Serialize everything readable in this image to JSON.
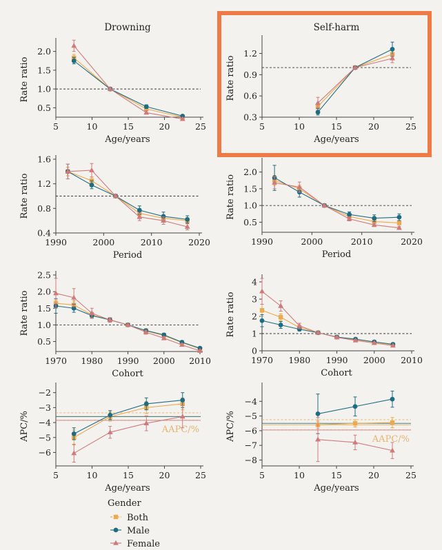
{
  "colors": {
    "both": "#eca94d",
    "male": "#1f6c82",
    "female": "#d07a7c",
    "highlight": "#ee7a45",
    "axis": "#444444",
    "refline": "#333333",
    "aapc_text": "#e7b36f"
  },
  "legend": {
    "title": "Gender",
    "items": [
      {
        "key": "both",
        "label": "Both",
        "marker": "square"
      },
      {
        "key": "male",
        "label": "Male",
        "marker": "circle"
      },
      {
        "key": "female",
        "label": "Female",
        "marker": "triangle"
      }
    ]
  },
  "chart_data": [
    {
      "id": "drowning-age",
      "type": "line",
      "title": "Drowning",
      "xlabel": "Age/years",
      "ylabel": "Rate ratio",
      "xlim": [
        5,
        25
      ],
      "ylim": [
        0.25,
        2.25
      ],
      "xticks": [
        5,
        10,
        15,
        20,
        25
      ],
      "yticks": [
        0.5,
        1.0,
        1.5,
        2.0
      ],
      "xtick_labels": [
        "5",
        "10",
        "15",
        "20",
        "25"
      ],
      "ytick_labels": [
        "0.5",
        "1.0",
        "1.5",
        "2.0"
      ],
      "reference_line": 1.0,
      "x": [
        7.5,
        12.5,
        17.5,
        22.5
      ],
      "series": [
        {
          "name": "Both",
          "values": [
            1.83,
            1.0,
            0.47,
            0.25
          ],
          "lower": [
            1.75,
            0.98,
            0.42,
            0.22
          ],
          "upper": [
            1.92,
            1.02,
            0.52,
            0.28
          ]
        },
        {
          "name": "Male",
          "values": [
            1.75,
            1.0,
            0.53,
            0.28
          ],
          "lower": [
            1.67,
            0.98,
            0.48,
            0.25
          ],
          "upper": [
            1.84,
            1.02,
            0.58,
            0.31
          ]
        },
        {
          "name": "Female",
          "values": [
            2.15,
            1.0,
            0.37,
            0.2
          ],
          "lower": [
            2.0,
            0.98,
            0.33,
            0.17
          ],
          "upper": [
            2.3,
            1.02,
            0.42,
            0.23
          ]
        }
      ]
    },
    {
      "id": "selfharm-age",
      "type": "line",
      "title": "Self-harm",
      "highlighted": true,
      "xlabel": "Age/years",
      "ylabel": "Rate ratio",
      "xlim": [
        5,
        25
      ],
      "ylim": [
        0.3,
        1.4
      ],
      "xticks": [
        5,
        10,
        15,
        20,
        25
      ],
      "yticks": [
        0.3,
        0.6,
        0.9,
        1.2
      ],
      "xtick_labels": [
        "5",
        "10",
        "15",
        "20",
        "25"
      ],
      "ytick_labels": [
        "0.3",
        "0.6",
        "0.9",
        "1.2"
      ],
      "reference_line": 1.0,
      "x": [
        12.5,
        17.5,
        22.5
      ],
      "series": [
        {
          "name": "Both",
          "values": [
            0.45,
            1.0,
            1.19
          ],
          "lower": [
            0.4,
            0.99,
            1.14
          ],
          "upper": [
            0.5,
            1.01,
            1.24
          ]
        },
        {
          "name": "Male",
          "values": [
            0.37,
            1.0,
            1.26
          ],
          "lower": [
            0.33,
            0.99,
            1.16
          ],
          "upper": [
            0.42,
            1.01,
            1.36
          ]
        },
        {
          "name": "Female",
          "values": [
            0.5,
            1.0,
            1.13
          ],
          "lower": [
            0.43,
            0.99,
            1.07
          ],
          "upper": [
            0.58,
            1.01,
            1.19
          ]
        }
      ]
    },
    {
      "id": "drowning-period",
      "type": "line",
      "title": "",
      "xlabel": "Period",
      "ylabel": "Rate ratio",
      "xlim": [
        1990,
        2020
      ],
      "ylim": [
        0.4,
        1.6
      ],
      "xticks": [
        1990,
        2000,
        2010,
        2020
      ],
      "yticks": [
        0.4,
        0.8,
        1.2,
        1.6
      ],
      "xtick_labels": [
        "1990",
        "2000",
        "2010",
        "2020"
      ],
      "ytick_labels": [
        "0.4",
        "0.8",
        "1.2",
        "1.6"
      ],
      "reference_line": 1.0,
      "x": [
        1992.5,
        1997.5,
        2002.5,
        2007.5,
        2012.5,
        2017.5
      ],
      "series": [
        {
          "name": "Both",
          "values": [
            1.4,
            1.25,
            1.0,
            0.72,
            0.64,
            0.6
          ],
          "lower": [
            1.33,
            1.19,
            0.99,
            0.67,
            0.6,
            0.55
          ],
          "upper": [
            1.47,
            1.31,
            1.01,
            0.77,
            0.69,
            0.65
          ]
        },
        {
          "name": "Male",
          "values": [
            1.4,
            1.18,
            1.0,
            0.77,
            0.67,
            0.62
          ],
          "lower": [
            1.28,
            1.12,
            0.99,
            0.7,
            0.61,
            0.56
          ],
          "upper": [
            1.52,
            1.25,
            1.01,
            0.84,
            0.74,
            0.68
          ]
        },
        {
          "name": "Female",
          "values": [
            1.4,
            1.42,
            1.0,
            0.66,
            0.6,
            0.5
          ],
          "lower": [
            1.28,
            1.31,
            0.99,
            0.6,
            0.54,
            0.45
          ],
          "upper": [
            1.52,
            1.53,
            1.01,
            0.72,
            0.66,
            0.55
          ]
        }
      ]
    },
    {
      "id": "selfharm-period",
      "type": "line",
      "title": "",
      "xlabel": "Period",
      "ylabel": "Rate ratio",
      "xlim": [
        1990,
        2020
      ],
      "ylim": [
        0.2,
        2.3
      ],
      "xticks": [
        1990,
        2000,
        2010,
        2020
      ],
      "yticks": [
        0.5,
        1.0,
        1.5,
        2.0
      ],
      "xtick_labels": [
        "1990",
        "2000",
        "2010",
        "2020"
      ],
      "ytick_labels": [
        "0.5",
        "1.0",
        "1.5",
        "2.0"
      ],
      "reference_line": 1.0,
      "x": [
        1992.5,
        1997.5,
        2002.5,
        2007.5,
        2012.5,
        2017.5
      ],
      "series": [
        {
          "name": "Both",
          "values": [
            1.75,
            1.5,
            1.0,
            0.67,
            0.52,
            0.48
          ],
          "lower": [
            1.6,
            1.4,
            0.99,
            0.62,
            0.47,
            0.42
          ],
          "upper": [
            1.9,
            1.6,
            1.01,
            0.72,
            0.57,
            0.54
          ]
        },
        {
          "name": "Male",
          "values": [
            1.83,
            1.4,
            1.0,
            0.73,
            0.62,
            0.65
          ],
          "lower": [
            1.45,
            1.25,
            0.99,
            0.65,
            0.52,
            0.55
          ],
          "upper": [
            2.2,
            1.55,
            1.01,
            0.81,
            0.72,
            0.75
          ]
        },
        {
          "name": "Female",
          "values": [
            1.68,
            1.55,
            1.0,
            0.6,
            0.42,
            0.33
          ],
          "lower": [
            1.5,
            1.4,
            0.99,
            0.54,
            0.37,
            0.29
          ],
          "upper": [
            1.86,
            1.7,
            1.01,
            0.66,
            0.47,
            0.37
          ]
        }
      ]
    },
    {
      "id": "drowning-cohort",
      "type": "line",
      "title": "",
      "xlabel": "Cohort",
      "ylabel": "Rate ratio",
      "xlim": [
        1970,
        2010
      ],
      "ylim": [
        0.2,
        2.5
      ],
      "xticks": [
        1970,
        1980,
        1990,
        2000,
        2010
      ],
      "yticks": [
        0.5,
        1.0,
        1.5,
        2.0,
        2.5
      ],
      "xtick_labels": [
        "1970",
        "1980",
        "1990",
        "2000",
        "2010"
      ],
      "ytick_labels": [
        "0.5",
        "1.0",
        "1.5",
        "2.0",
        "2.5"
      ],
      "reference_line": 1.0,
      "x": [
        1970,
        1975,
        1980,
        1985,
        1990,
        1995,
        2000,
        2005,
        2010
      ],
      "series": [
        {
          "name": "Both",
          "values": [
            1.65,
            1.6,
            1.3,
            1.15,
            1.0,
            0.82,
            0.68,
            0.47,
            0.28
          ],
          "lower": [
            1.55,
            1.48,
            1.22,
            1.1,
            0.99,
            0.77,
            0.63,
            0.43,
            0.25
          ],
          "upper": [
            1.75,
            1.72,
            1.38,
            1.2,
            1.01,
            0.87,
            0.73,
            0.51,
            0.31
          ]
        },
        {
          "name": "Male",
          "values": [
            1.57,
            1.5,
            1.28,
            1.15,
            1.0,
            0.83,
            0.7,
            0.48,
            0.3
          ],
          "lower": [
            1.35,
            1.38,
            1.2,
            1.1,
            0.99,
            0.78,
            0.65,
            0.44,
            0.27
          ],
          "upper": [
            1.79,
            1.62,
            1.36,
            1.2,
            1.01,
            0.88,
            0.75,
            0.52,
            0.33
          ]
        },
        {
          "name": "Female",
          "values": [
            1.95,
            1.82,
            1.35,
            1.15,
            1.0,
            0.78,
            0.6,
            0.4,
            0.22
          ],
          "lower": [
            1.5,
            1.55,
            1.2,
            1.08,
            0.99,
            0.72,
            0.55,
            0.36,
            0.19
          ],
          "upper": [
            2.4,
            2.09,
            1.5,
            1.22,
            1.01,
            0.84,
            0.65,
            0.44,
            0.25
          ]
        }
      ]
    },
    {
      "id": "selfharm-cohort",
      "type": "line",
      "title": "",
      "xlabel": "Cohort",
      "ylabel": "Rate ratio",
      "xlim": [
        1970,
        2010
      ],
      "ylim": [
        0,
        4.2
      ],
      "xticks": [
        1970,
        1980,
        1990,
        2000,
        2010
      ],
      "yticks": [
        0,
        1,
        2,
        3,
        4
      ],
      "xtick_labels": [
        "1970",
        "1980",
        "1990",
        "2000",
        "2010"
      ],
      "ytick_labels": [
        "0",
        "1",
        "2",
        "3",
        "4"
      ],
      "reference_line": 1.0,
      "x": [
        1970,
        1975,
        1980,
        1985,
        1990,
        1995,
        2000,
        2005
      ],
      "series": [
        {
          "name": "Both",
          "values": [
            2.35,
            1.95,
            1.35,
            1.05,
            0.8,
            0.65,
            0.5,
            0.35
          ],
          "lower": [
            2.0,
            1.75,
            1.25,
            1.0,
            0.75,
            0.6,
            0.45,
            0.3
          ],
          "upper": [
            2.7,
            2.15,
            1.45,
            1.1,
            0.85,
            0.7,
            0.55,
            0.4
          ]
        },
        {
          "name": "Male",
          "values": [
            1.75,
            1.5,
            1.25,
            1.05,
            0.8,
            0.68,
            0.52,
            0.38
          ],
          "lower": [
            1.4,
            1.3,
            1.15,
            1.0,
            0.75,
            0.63,
            0.47,
            0.33
          ],
          "upper": [
            2.1,
            1.7,
            1.35,
            1.1,
            0.85,
            0.73,
            0.57,
            0.43
          ]
        },
        {
          "name": "Female",
          "values": [
            3.45,
            2.6,
            1.45,
            1.05,
            0.78,
            0.6,
            0.45,
            0.3
          ],
          "lower": [
            2.7,
            2.3,
            1.3,
            1.0,
            0.73,
            0.55,
            0.4,
            0.26
          ],
          "upper": [
            4.2,
            2.9,
            1.6,
            1.1,
            0.83,
            0.65,
            0.5,
            0.34
          ]
        }
      ]
    },
    {
      "id": "drowning-apc",
      "type": "line",
      "title": "",
      "xlabel": "Age/years",
      "ylabel": "APC/%",
      "xlim": [
        5,
        25
      ],
      "ylim": [
        -6.9,
        -1.6
      ],
      "xticks": [
        5,
        10,
        15,
        20,
        25
      ],
      "yticks": [
        -6,
        -5,
        -4,
        -3,
        -2
      ],
      "xtick_labels": [
        "5",
        "10",
        "15",
        "20",
        "25"
      ],
      "ytick_labels": [
        "−6",
        "−5",
        "−4",
        "−3",
        "−2"
      ],
      "annotation": "AAPC/%",
      "aapc": [
        {
          "name": "Both",
          "value": -3.6,
          "lower": -3.85,
          "upper": -3.35
        },
        {
          "name": "Male",
          "value": -3.6
        },
        {
          "name": "Female",
          "value": -3.85
        }
      ],
      "x": [
        7.5,
        12.5,
        17.5,
        22.5
      ],
      "series": [
        {
          "name": "Both",
          "values": [
            -5.0,
            -3.6,
            -3.0,
            -2.75
          ],
          "lower": [
            -5.5,
            -3.9,
            -3.4,
            -3.15
          ],
          "upper": [
            -4.5,
            -3.3,
            -2.6,
            -2.35
          ]
        },
        {
          "name": "Male",
          "values": [
            -4.75,
            -3.5,
            -2.75,
            -2.5
          ],
          "lower": [
            -5.15,
            -3.8,
            -3.15,
            -3.0
          ],
          "upper": [
            -4.35,
            -3.2,
            -2.35,
            -2.0
          ]
        },
        {
          "name": "Female",
          "values": [
            -6.05,
            -4.65,
            -4.05,
            -3.6
          ],
          "lower": [
            -6.65,
            -5.05,
            -4.55,
            -4.35
          ],
          "upper": [
            -5.45,
            -4.25,
            -3.55,
            -2.85
          ]
        }
      ]
    },
    {
      "id": "selfharm-apc",
      "type": "line",
      "title": "",
      "xlabel": "Age/years",
      "ylabel": "APC/%",
      "xlim": [
        5,
        25
      ],
      "ylim": [
        -8.4,
        -3.0
      ],
      "xticks": [
        5,
        10,
        15,
        20,
        25
      ],
      "yticks": [
        -8,
        -7,
        -6,
        -5,
        -4
      ],
      "xtick_labels": [
        "5",
        "10",
        "15",
        "20",
        "25"
      ],
      "ytick_labels": [
        "−8",
        "−7",
        "−6",
        "−5",
        "−4"
      ],
      "annotation": "AAPC/%",
      "aapc": [
        {
          "name": "Both",
          "value": -5.6,
          "lower": -5.95,
          "upper": -5.25
        },
        {
          "name": "Male",
          "value": -5.5
        },
        {
          "name": "Female",
          "value": -5.95
        }
      ],
      "x": [
        12.5,
        17.5,
        22.5
      ],
      "series": [
        {
          "name": "Both",
          "values": [
            -5.6,
            -5.5,
            -5.45
          ],
          "lower": [
            -5.85,
            -5.75,
            -5.8
          ],
          "upper": [
            -5.35,
            -5.25,
            -5.1
          ]
        },
        {
          "name": "Male",
          "values": [
            -4.85,
            -4.35,
            -3.85
          ],
          "lower": [
            -6.2,
            -5.0,
            -4.4
          ],
          "upper": [
            -3.5,
            -3.7,
            -3.3
          ]
        },
        {
          "name": "Female",
          "values": [
            -6.6,
            -6.8,
            -7.35
          ],
          "lower": [
            -8.1,
            -7.3,
            -7.9
          ],
          "upper": [
            -5.1,
            -6.3,
            -6.8
          ]
        }
      ]
    }
  ]
}
